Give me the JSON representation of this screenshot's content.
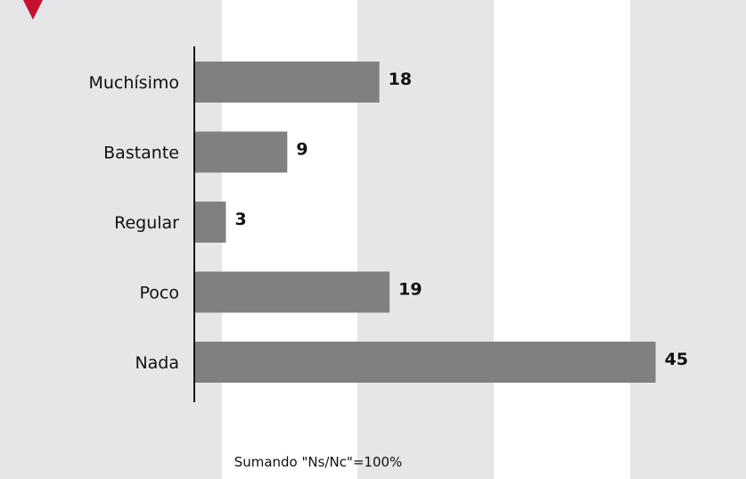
{
  "chart_data": {
    "type": "bar",
    "orientation": "horizontal",
    "categories": [
      "Muchísimo",
      "Bastante",
      "Regular",
      "Poco",
      "Nada"
    ],
    "values": [
      18,
      9,
      3,
      19,
      45
    ],
    "xlim": [
      0,
      55
    ],
    "grid": "alternating vertical bands",
    "colors": {
      "bar": "#808080",
      "band_light": "#ffffff",
      "band_dark": "#e6e6e8",
      "marker": "#c8102e",
      "axis": "#111111"
    }
  },
  "footnote": "Sumando \"Ns/Nc\"=100%"
}
